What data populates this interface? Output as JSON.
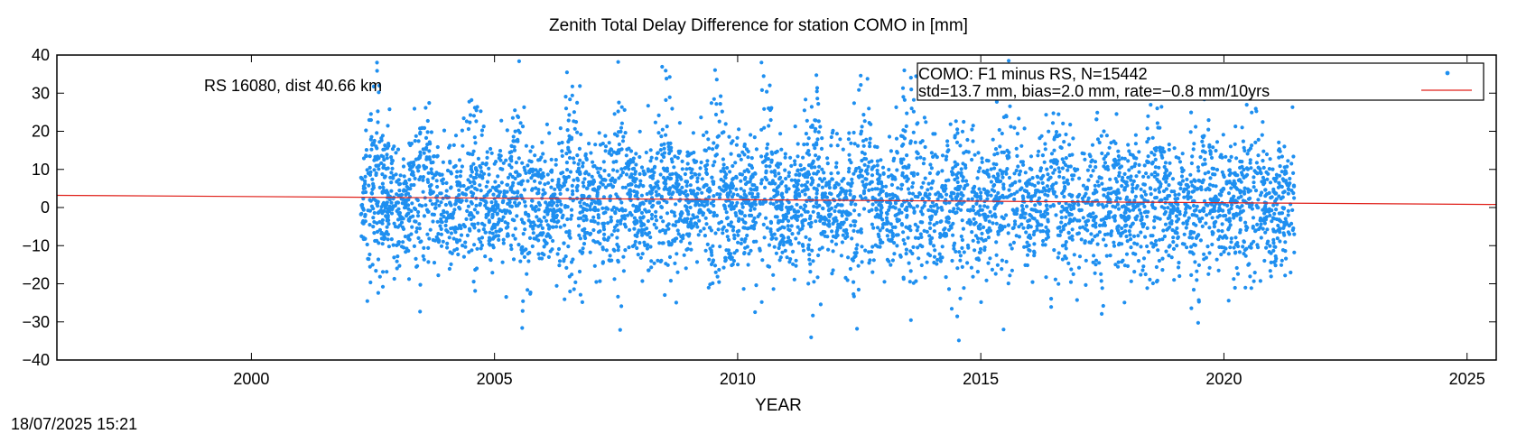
{
  "chart_data": {
    "type": "scatter",
    "title": "Zenith Total Delay Difference for station COMO in [mm]",
    "xlabel": "YEAR",
    "ylabel": "",
    "xlim": [
      1996,
      2025.6
    ],
    "ylim": [
      -40,
      40
    ],
    "xticks": [
      2000,
      2005,
      2010,
      2015,
      2020,
      2025
    ],
    "yticks": [
      -40,
      -30,
      -20,
      -10,
      0,
      10,
      20,
      30,
      40
    ],
    "grid": false,
    "legend_position": "top-right",
    "annotation": "RS 16080, dist 40.66 km",
    "series": [
      {
        "name": "COMO: F1 minus RS, N=15442",
        "kind": "points",
        "color": "#1e8ff0",
        "x_range": [
          2002.25,
          2021.45
        ],
        "n": 15442,
        "approx_mean": 2.0,
        "approx_std": 13.7
      },
      {
        "name": "std=13.7 mm, bias=2.0 mm, rate=−0.8 mm/10yrs",
        "kind": "line",
        "color": "#e0201a",
        "x": [
          1996,
          2025.6
        ],
        "y": [
          3.2,
          0.8
        ]
      }
    ]
  },
  "footer": {
    "timestamp": "18/07/2025 15:21"
  }
}
